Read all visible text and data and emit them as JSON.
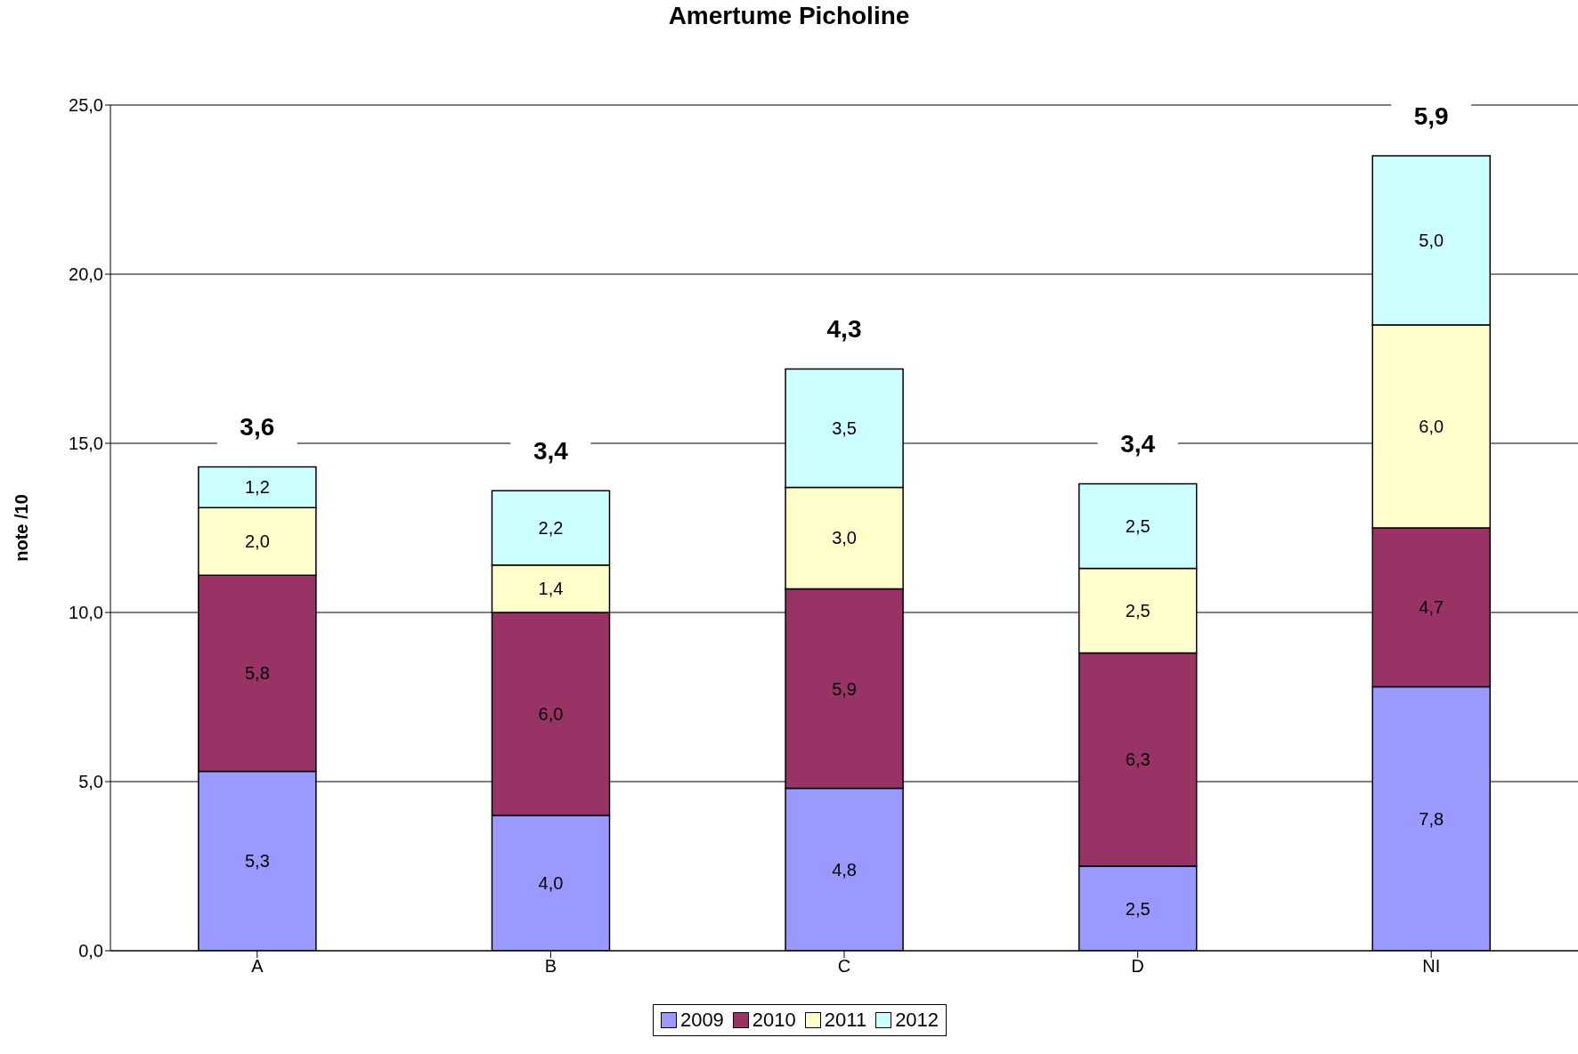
{
  "chart_data": {
    "type": "bar",
    "title": "Amertume Picholine",
    "ylabel": "note /10",
    "categories": [
      "A",
      "B",
      "C",
      "D",
      "NI"
    ],
    "stacked": true,
    "series": [
      {
        "name": "2009",
        "color": "#9999ff",
        "values": [
          5.3,
          4.0,
          4.8,
          2.5,
          7.8
        ],
        "value_labels": [
          "5,3",
          "4,0",
          "4,8",
          "2,5",
          "7,8"
        ]
      },
      {
        "name": "2010",
        "color": "#993366",
        "values": [
          5.8,
          6.0,
          5.9,
          6.3,
          4.7
        ],
        "value_labels": [
          "5,8",
          "6,0",
          "5,9",
          "6,3",
          "4,7"
        ]
      },
      {
        "name": "2011",
        "color": "#ffffcc",
        "values": [
          2.0,
          1.4,
          3.0,
          2.5,
          6.0
        ],
        "value_labels": [
          "2,0",
          "1,4",
          "3,0",
          "2,5",
          "6,0"
        ]
      },
      {
        "name": "2012",
        "color": "#ccffff",
        "values": [
          1.2,
          2.2,
          3.5,
          2.5,
          5.0
        ],
        "value_labels": [
          "1,2",
          "2,2",
          "3,5",
          "2,5",
          "5,0"
        ]
      }
    ],
    "annotations": [
      {
        "text": "3,6",
        "x": "A",
        "y": 14.3
      },
      {
        "text": "3,4",
        "x": "B",
        "y": 13.6
      },
      {
        "text": "4,3",
        "x": "C",
        "y": 17.2
      },
      {
        "text": "3,4",
        "x": "D",
        "y": 13.8
      },
      {
        "text": "5,9",
        "x": "NI",
        "y": 23.5
      }
    ],
    "ylim": [
      0,
      25
    ],
    "yticks": [
      {
        "value": 0,
        "label": "0,0"
      },
      {
        "value": 5,
        "label": "5,0"
      },
      {
        "value": 10,
        "label": "10,0"
      },
      {
        "value": 15,
        "label": "15,0"
      },
      {
        "value": 20,
        "label": "20,0"
      },
      {
        "value": 25,
        "label": "25,0"
      }
    ],
    "grid": "y",
    "legend": "bottom"
  }
}
